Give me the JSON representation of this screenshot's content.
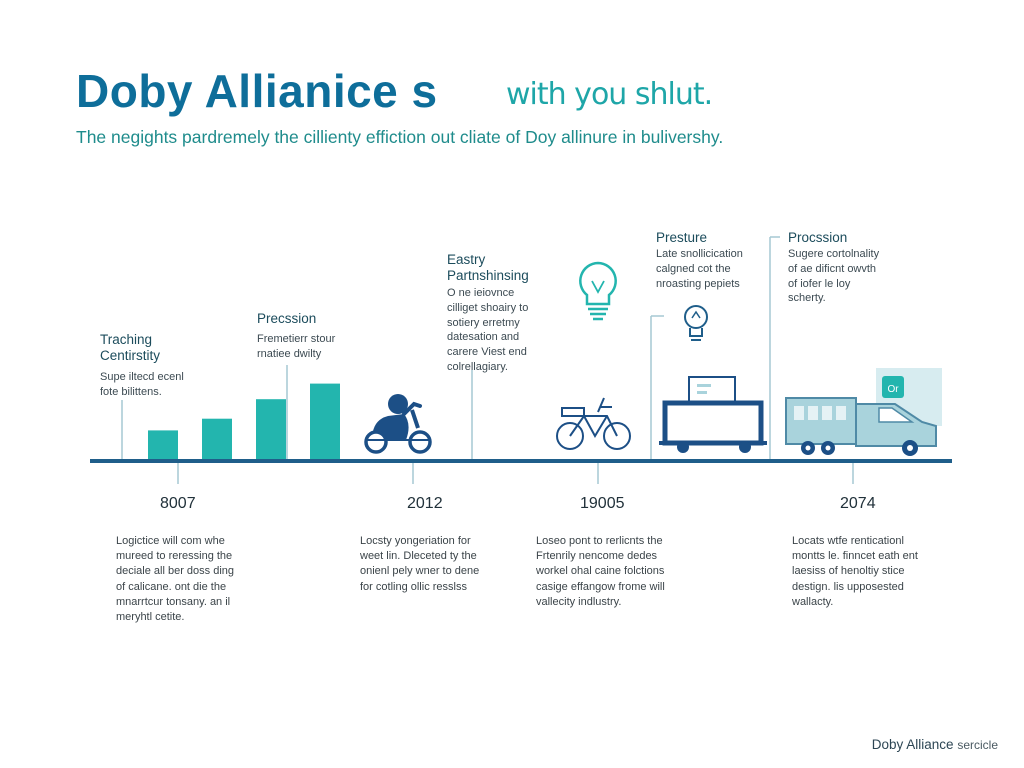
{
  "header": {
    "title": "Doby Allianice s",
    "title_tail": "with you shlut.",
    "subtitle": "The negights pardremely the cillienty effiction out cliate of Doy allinure in bulivershy."
  },
  "upper_labels": [
    {
      "title_lines": [
        "Traching",
        "Centirstity"
      ],
      "desc_lines": [
        "Supe iltecd ecenl",
        "fote bilittens."
      ]
    },
    {
      "title_lines": [
        "Precssion"
      ],
      "desc_lines": [
        "Fremetierr stour",
        "rnatiee dwilty"
      ]
    },
    {
      "title_lines": [
        "Eastry",
        "Partnshinsing"
      ],
      "desc_lines": [
        "O ne ieiovnce",
        "cilliget shoairy to",
        "sotiery erretmy",
        "datesation and",
        "carere Viest end",
        "colrellagiary."
      ]
    },
    {
      "title_lines": [
        "Presture"
      ],
      "desc_lines": [
        "Late snollicication",
        "calgned cot the",
        "nroasting pepiets"
      ]
    },
    {
      "title_lines": [
        "Procssion"
      ],
      "desc_lines": [
        "Sugere cortolnality",
        "of ae dificnt owvth",
        "of iofer le loy",
        "scherty."
      ]
    }
  ],
  "years": [
    "8007",
    "2012",
    "19005",
    "2074"
  ],
  "bottom_desc": [
    [
      "Logictice will com whe",
      "mureed to reressing the",
      "deciale all ber doss ding",
      "of calicane. ont die the",
      "mnarrtcur tonsany. an il",
      "meryhtl cetite."
    ],
    [
      "Locsty yongeriation for",
      "weet lin. Dleceted ty the",
      "onienl pely wner to dene",
      "for cotling ollic resslss"
    ],
    [
      "Loseo pont to rerlicnts the",
      "Frtenrily nencome dedes",
      "workel ohal caine folctions",
      "casige effangow frome will",
      "vallecity indlustry."
    ],
    [
      "Locats wtfe renticationl",
      "montts le. finncet eath ent",
      "laesiss of henoltiy stice",
      "destign. lis upposested",
      "wallacty."
    ]
  ],
  "bars": [
    0.22,
    0.31,
    0.46,
    0.58
  ],
  "truck_sign": "Or",
  "footer": {
    "brand": "Doby Alliance",
    "suffix": "sercicle"
  },
  "colors": {
    "title": "#0e6e9a",
    "accent": "#1ea6a8",
    "bar": "#23b5ae",
    "timeline": "#1f5e8a",
    "navy": "#1c4f86",
    "lightblue": "#a9d3dc"
  },
  "icons": [
    "bar-group",
    "scooter-icon",
    "lightbulb-icon",
    "bicycle-icon",
    "trailer-icon",
    "delivery-truck-icon"
  ]
}
